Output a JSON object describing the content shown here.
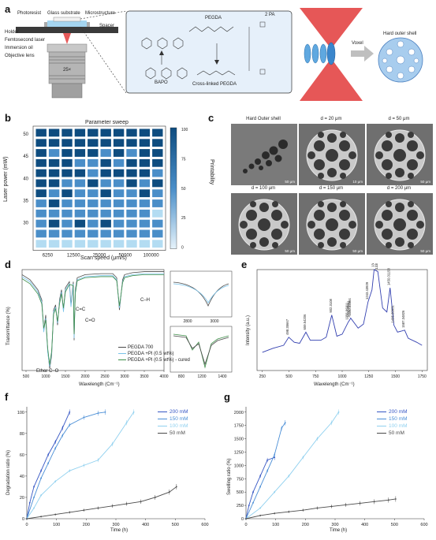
{
  "panel_a": {
    "letter": "a",
    "labels": {
      "photoresist": "Photoresist",
      "glass_substrate": "Glass substrate",
      "microstructure": "Microstructure",
      "holder": "Holder",
      "spacer": "Spacer",
      "femtosecond_laser": "Femtosecond laser",
      "immersion_oil": "Immersion oil",
      "objective_lens": "Objective lens",
      "bapo": "BAPO",
      "pegda": "PEGDA",
      "crosslinked": "Cross-linked PEGDA",
      "two_pa": "2 PA",
      "voxel": "Voxel",
      "hard_shell": "Hard outer shell",
      "lens_mag": "25×"
    }
  },
  "panel_b": {
    "letter": "b",
    "title": "Parameter sweep",
    "xlabel": "Scan speed (μm/s)",
    "ylabel": "Laser power (mW)",
    "colorbar_label": "Printability",
    "colorbar_ticks": [
      "100",
      "75",
      "50",
      "25",
      "0"
    ],
    "x_ticks": [
      "6250",
      "12500",
      "25000",
      "50000",
      "100000"
    ],
    "y_ticks": [
      "50",
      "45",
      "40",
      "35",
      "30"
    ]
  },
  "panel_c": {
    "letter": "c",
    "images": [
      {
        "title": "Hard Outer shell",
        "scale": "50 μm"
      },
      {
        "title": "d = 20 μm",
        "scale": "10 μm"
      },
      {
        "title": "d = 50 μm",
        "scale": "50 μm"
      },
      {
        "title": "d = 100 μm",
        "scale": "50 μm"
      },
      {
        "title": "d = 150 μm",
        "scale": "50 μm"
      },
      {
        "title": "d = 200 μm",
        "scale": "50 μm"
      }
    ]
  },
  "panel_d": {
    "letter": "d",
    "ylabel": "Transmittance (%)",
    "xlabel": "Wavelength (Cm⁻¹)",
    "x_ticks": [
      "500",
      "1000",
      "1500",
      "2000",
      "2500",
      "3000",
      "3500",
      "4000"
    ],
    "annotations": [
      "C=C",
      "C=O",
      "C–H",
      "Ether C–O"
    ],
    "legend": [
      "PEGDA 700",
      "PEGDA +PI (0.5 wt%)",
      "PEGDA +PI (0.5 wt%) - cured"
    ],
    "inset_top_ticks": [
      "2800",
      "3000"
    ],
    "inset_bottom_ticks": [
      "800",
      "1200",
      "1400"
    ]
  },
  "panel_e": {
    "letter": "e",
    "ylabel": "Intensity (a.u.)",
    "xlabel": "Wavelength (Cm⁻¹)",
    "x_ticks": [
      "250",
      "500",
      "750",
      "1000",
      "1250",
      "1500",
      "1750"
    ],
    "peak_labels": [
      "498.35667",
      "659.54206",
      "902.3108",
      "1056.96911",
      "1070.85911",
      "1080.32804",
      "1243.43929",
      "1300.59638",
      "1335.18519",
      "1450.01158",
      "1485.89931",
      "1587.34826"
    ]
  },
  "panel_f": {
    "letter": "f",
    "ylabel": "Degradation ratio (%)",
    "xlabel": "Time (h)",
    "x_ticks": [
      "0",
      "100",
      "200",
      "300",
      "400",
      "500",
      "600"
    ],
    "y_ticks": [
      "0",
      "20",
      "40",
      "60",
      "80",
      "100"
    ],
    "legend": [
      "200 mM",
      "150 mM",
      "100 mM",
      "50 mM"
    ]
  },
  "panel_g": {
    "letter": "g",
    "ylabel": "Swelling ratio (%)",
    "xlabel": "Time (h)",
    "x_ticks": [
      "0",
      "100",
      "200",
      "300",
      "400",
      "500",
      "600"
    ],
    "y_ticks": [
      "0",
      "250",
      "500",
      "750",
      "1000",
      "1250",
      "1500",
      "1750",
      "2000"
    ],
    "legend": [
      "200 mM",
      "150 mM",
      "100 mM",
      "50 mM"
    ]
  },
  "colors": {
    "c200": "#3556c4",
    "c150": "#4a8ed6",
    "c100": "#8fd0ef",
    "c50": "#4a4a4a",
    "dark_blue": "#0e4c7f",
    "mid_blue": "#4a8ec8",
    "light_blue": "#b3dcf2",
    "panel_box": "#e6f0fa"
  },
  "chart_data": [
    {
      "type": "heatmap",
      "title": "Parameter sweep",
      "xlabel": "Scan speed (μm/s)",
      "ylabel": "Laser power (mW)",
      "x": [
        "6250",
        "12500",
        "25000",
        "50000",
        "100000"
      ],
      "legend_label": "Printability",
      "range": [
        0,
        100
      ],
      "rows": [
        [
          100,
          100,
          100,
          100,
          100,
          100,
          100,
          100,
          100,
          100
        ],
        [
          100,
          100,
          100,
          100,
          100,
          100,
          100,
          100,
          100,
          100
        ],
        [
          100,
          75,
          100,
          100,
          100,
          75,
          100,
          75,
          100,
          100
        ],
        [
          100,
          100,
          100,
          75,
          75,
          100,
          75,
          100,
          100,
          100
        ],
        [
          100,
          100,
          100,
          100,
          75,
          100,
          100,
          100,
          100,
          75
        ],
        [
          100,
          100,
          75,
          75,
          100,
          75,
          75,
          100,
          75,
          100
        ],
        [
          100,
          75,
          100,
          75,
          75,
          100,
          75,
          75,
          100,
          75
        ],
        [
          75,
          100,
          75,
          75,
          75,
          75,
          75,
          75,
          75,
          75
        ],
        [
          75,
          75,
          75,
          75,
          75,
          75,
          75,
          75,
          75,
          25
        ],
        [
          75,
          100,
          75,
          100,
          75,
          100,
          75,
          75,
          75,
          75
        ],
        [
          75,
          75,
          75,
          75,
          75,
          75,
          75,
          75,
          75,
          75
        ],
        [
          25,
          25,
          25,
          25,
          25,
          25,
          25,
          25,
          25,
          25
        ]
      ]
    },
    {
      "type": "line",
      "xlabel": "Wavelength (Cm⁻¹)",
      "ylabel": "Transmittance (%)",
      "series": [
        {
          "name": "PEGDA 700",
          "x": [
            400,
            600,
            800,
            900,
            950,
            1000,
            1050,
            1100,
            1150,
            1200,
            1250,
            1300,
            1350,
            1400,
            1450,
            1500,
            1600,
            1640,
            1700,
            1720,
            1750,
            1800,
            2000,
            2400,
            2700,
            2800,
            2870,
            2950,
            3000,
            3200,
            3500,
            4000
          ],
          "y": [
            95,
            90,
            80,
            70,
            40,
            55,
            20,
            2,
            15,
            60,
            65,
            45,
            70,
            80,
            60,
            82,
            88,
            65,
            88,
            30,
            80,
            92,
            95,
            96,
            96,
            92,
            60,
            90,
            95,
            97,
            98,
            98
          ]
        },
        {
          "name": "PEGDA +PI (0.5 wt%)",
          "x": [
            400,
            600,
            800,
            900,
            950,
            1000,
            1050,
            1100,
            1150,
            1200,
            1250,
            1300,
            1350,
            1400,
            1450,
            1500,
            1600,
            1640,
            1700,
            1720,
            1750,
            1800,
            2000,
            2400,
            2700,
            2800,
            2870,
            2950,
            3000,
            3200,
            3500,
            4000
          ],
          "y": [
            93,
            88,
            78,
            68,
            38,
            52,
            18,
            4,
            17,
            58,
            63,
            47,
            68,
            78,
            58,
            80,
            86,
            63,
            86,
            32,
            78,
            90,
            93,
            94,
            94,
            90,
            62,
            88,
            93,
            95,
            96,
            96
          ]
        },
        {
          "name": "PEGDA +PI (0.5 wt%) - cured",
          "x": [
            400,
            600,
            800,
            900,
            950,
            1000,
            1050,
            1100,
            1150,
            1200,
            1250,
            1300,
            1350,
            1400,
            1450,
            1500,
            1600,
            1640,
            1700,
            1720,
            1750,
            1800,
            2000,
            2400,
            2700,
            2800,
            2870,
            2950,
            3000,
            3200,
            3500,
            4000
          ],
          "y": [
            91,
            86,
            76,
            66,
            42,
            50,
            22,
            6,
            19,
            56,
            61,
            49,
            66,
            76,
            62,
            78,
            85,
            85,
            84,
            36,
            76,
            89,
            92,
            93,
            93,
            89,
            64,
            87,
            92,
            94,
            95,
            95
          ]
        }
      ]
    },
    {
      "type": "line",
      "xlabel": "Wavelength (Cm⁻¹)",
      "ylabel": "Intensity (a.u.)",
      "series": [
        {
          "name": "",
          "x": [
            250,
            350,
            450,
            498,
            550,
            600,
            659,
            700,
            800,
            850,
            902,
            950,
            1000,
            1057,
            1070,
            1080,
            1150,
            1200,
            1243,
            1280,
            1300,
            1335,
            1380,
            1420,
            1450,
            1486,
            1520,
            1587,
            1620,
            1700,
            1750
          ],
          "y": [
            0.18,
            0.22,
            0.25,
            0.33,
            0.28,
            0.27,
            0.38,
            0.3,
            0.3,
            0.33,
            0.55,
            0.34,
            0.36,
            0.48,
            0.5,
            0.52,
            0.42,
            0.46,
            0.68,
            0.8,
            1.0,
            0.98,
            0.62,
            0.58,
            0.82,
            0.45,
            0.38,
            0.4,
            0.32,
            0.28,
            0.25
          ]
        }
      ]
    },
    {
      "type": "line",
      "xlabel": "Time (h)",
      "ylabel": "Degradation ratio (%)",
      "ylim": [
        0,
        105
      ],
      "xlim": [
        0,
        600
      ],
      "series": [
        {
          "name": "200 mM",
          "x": [
            0,
            10,
            24,
            48,
            72,
            96,
            120,
            144
          ],
          "y": [
            0,
            15,
            30,
            45,
            60,
            72,
            85,
            100
          ]
        },
        {
          "name": "150 mM",
          "x": [
            0,
            24,
            48,
            72,
            96,
            120,
            144,
            192,
            240,
            264
          ],
          "y": [
            0,
            20,
            38,
            52,
            66,
            78,
            88,
            95,
            99,
            100
          ]
        },
        {
          "name": "100 mM",
          "x": [
            0,
            24,
            48,
            96,
            144,
            192,
            240,
            288,
            336,
            360
          ],
          "y": [
            0,
            10,
            22,
            35,
            45,
            50,
            55,
            70,
            90,
            100
          ]
        },
        {
          "name": "50 mM",
          "x": [
            0,
            48,
            96,
            144,
            192,
            240,
            288,
            336,
            384,
            432,
            480,
            504
          ],
          "y": [
            0,
            2,
            4,
            6,
            8,
            10,
            12,
            14,
            16,
            20,
            25,
            30
          ]
        }
      ]
    },
    {
      "type": "line",
      "xlabel": "Time (h)",
      "ylabel": "Swelling ratio (%)",
      "ylim": [
        0,
        2100
      ],
      "xlim": [
        0,
        600
      ],
      "series": [
        {
          "name": "200 mM",
          "x": [
            0,
            10,
            24,
            48,
            72,
            96
          ],
          "y": [
            0,
            250,
            500,
            800,
            1100,
            1150
          ]
        },
        {
          "name": "150 mM",
          "x": [
            0,
            24,
            48,
            72,
            96,
            120,
            132
          ],
          "y": [
            0,
            300,
            600,
            900,
            1200,
            1700,
            1800
          ]
        },
        {
          "name": "100 mM",
          "x": [
            0,
            48,
            96,
            144,
            192,
            240,
            288,
            312
          ],
          "y": [
            0,
            200,
            500,
            800,
            1150,
            1500,
            1800,
            2000
          ]
        },
        {
          "name": "50 mM",
          "x": [
            0,
            48,
            96,
            144,
            192,
            240,
            288,
            336,
            384,
            432,
            480,
            504
          ],
          "y": [
            0,
            60,
            100,
            130,
            160,
            200,
            230,
            260,
            290,
            320,
            350,
            370
          ]
        }
      ]
    }
  ]
}
